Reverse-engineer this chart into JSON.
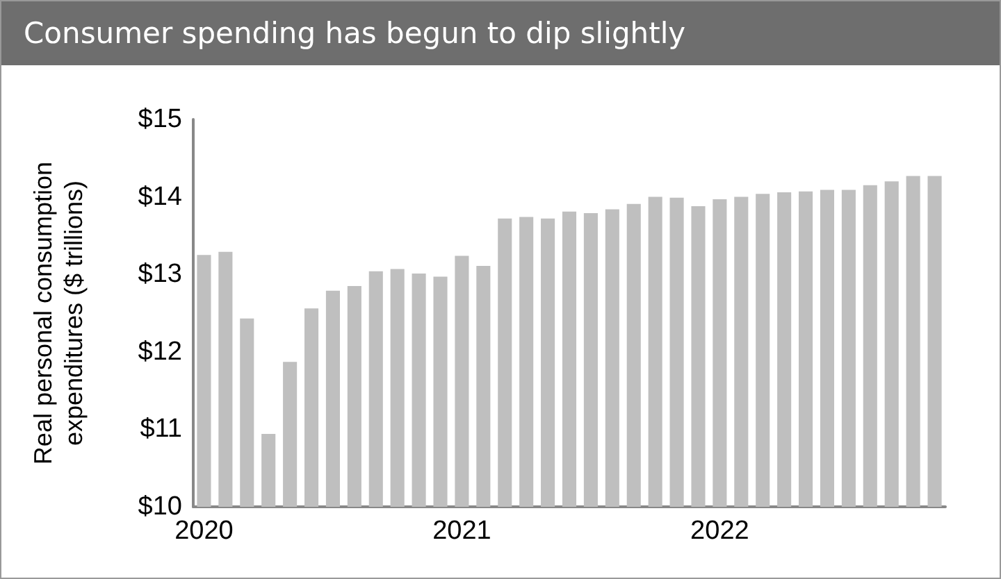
{
  "chart_data": {
    "type": "bar",
    "title": "Consumer spending has begun to dip slightly",
    "ylabel": "Real personal consumption expenditures ($ trillions)",
    "categories": [
      "2020",
      null,
      null,
      null,
      null,
      null,
      null,
      null,
      null,
      null,
      null,
      null,
      "2021",
      null,
      null,
      null,
      null,
      null,
      null,
      null,
      null,
      null,
      null,
      null,
      "2022",
      null,
      null,
      null,
      null,
      null,
      null,
      null,
      null,
      null,
      null
    ],
    "values": [
      13.25,
      13.29,
      12.43,
      10.94,
      11.87,
      12.56,
      12.79,
      12.85,
      13.04,
      13.07,
      13.01,
      12.97,
      13.24,
      13.11,
      13.72,
      13.74,
      13.72,
      13.81,
      13.79,
      13.84,
      13.91,
      14.0,
      13.99,
      13.88,
      13.97,
      14.0,
      14.04,
      14.06,
      14.07,
      14.09,
      14.09,
      14.15,
      14.2,
      14.27,
      14.27
    ],
    "color": "#bfbfbf",
    "ylim": [
      10,
      15
    ],
    "yticks": [
      {
        "value": 10,
        "label": "$10"
      },
      {
        "value": 11,
        "label": "$11"
      },
      {
        "value": 12,
        "label": "$12"
      },
      {
        "value": 13,
        "label": "$13"
      },
      {
        "value": 14,
        "label": "$14"
      },
      {
        "value": 15,
        "label": "$15"
      }
    ],
    "grid": false
  }
}
